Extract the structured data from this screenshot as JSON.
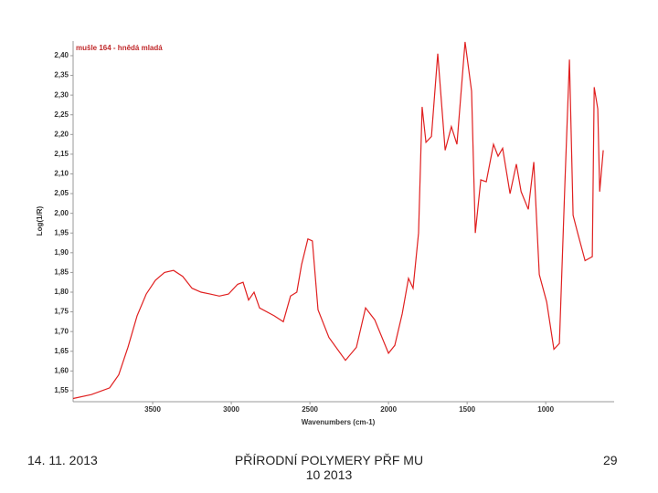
{
  "chart_data": {
    "type": "line",
    "title": "mušle 164 - hnědá mladá",
    "xlabel": "Wavenumbers (cm-1)",
    "ylabel": "Log(1/R)",
    "xlim": [
      4006,
      565
    ],
    "ylim": [
      1.522,
      2.437
    ],
    "xticks": [
      3500,
      3000,
      2500,
      2000,
      1500,
      1000
    ],
    "yticks": [
      {
        "value": 1.55,
        "label": "1,55"
      },
      {
        "value": 1.6,
        "label": "1,60"
      },
      {
        "value": 1.65,
        "label": "1,65"
      },
      {
        "value": 1.7,
        "label": "1,70"
      },
      {
        "value": 1.75,
        "label": "1,75"
      },
      {
        "value": 1.8,
        "label": "1,80"
      },
      {
        "value": 1.85,
        "label": "1,85"
      },
      {
        "value": 1.9,
        "label": "1,90"
      },
      {
        "value": 1.95,
        "label": "1,95"
      },
      {
        "value": 2.0,
        "label": "2,00"
      },
      {
        "value": 2.05,
        "label": "2,05"
      },
      {
        "value": 2.1,
        "label": "2,10"
      },
      {
        "value": 2.15,
        "label": "2,15"
      },
      {
        "value": 2.2,
        "label": "2,20"
      },
      {
        "value": 2.25,
        "label": "2,25"
      },
      {
        "value": 2.3,
        "label": "2,30"
      },
      {
        "value": 2.35,
        "label": "2,35"
      },
      {
        "value": 2.4,
        "label": "2,40"
      }
    ],
    "color": "#e02020",
    "x": [
      4006,
      3890,
      3774,
      3716,
      3657,
      3599,
      3541,
      3483,
      3425,
      3367,
      3309,
      3250,
      3192,
      3134,
      3076,
      3018,
      2960,
      2925,
      2890,
      2855,
      2820,
      2727,
      2669,
      2623,
      2583,
      2553,
      2513,
      2484,
      2448,
      2379,
      2274,
      2204,
      2146,
      2088,
      2000,
      1960,
      1913,
      1873,
      1844,
      1809,
      1786,
      1762,
      1727,
      1687,
      1640,
      1600,
      1565,
      1513,
      1472,
      1448,
      1413,
      1378,
      1332,
      1303,
      1274,
      1227,
      1187,
      1157,
      1111,
      1076,
      1041,
      994,
      948,
      913,
      878,
      849,
      826,
      797,
      750,
      704,
      692,
      669,
      657,
      634
    ],
    "values": [
      1.53,
      1.54,
      1.557,
      1.59,
      1.66,
      1.74,
      1.795,
      1.83,
      1.85,
      1.855,
      1.84,
      1.81,
      1.8,
      1.795,
      1.79,
      1.795,
      1.82,
      1.825,
      1.78,
      1.8,
      1.76,
      1.74,
      1.725,
      1.79,
      1.8,
      1.87,
      1.935,
      1.93,
      1.755,
      1.685,
      1.627,
      1.66,
      1.76,
      1.73,
      1.645,
      1.665,
      1.745,
      1.835,
      1.81,
      1.95,
      2.27,
      2.18,
      2.195,
      2.405,
      2.16,
      2.22,
      2.175,
      2.435,
      2.31,
      1.95,
      2.085,
      2.08,
      2.175,
      2.145,
      2.165,
      2.05,
      2.125,
      2.055,
      2.01,
      2.13,
      1.845,
      1.775,
      1.655,
      1.67,
      2.08,
      2.39,
      1.995,
      1.95,
      1.88,
      1.89,
      2.32,
      2.265,
      2.055,
      2.16
    ]
  },
  "footer": {
    "date": "14. 11. 2013",
    "center": "PŘÍRODNÍ POLYMERY PŘF MU 10 2013",
    "page": "29"
  }
}
